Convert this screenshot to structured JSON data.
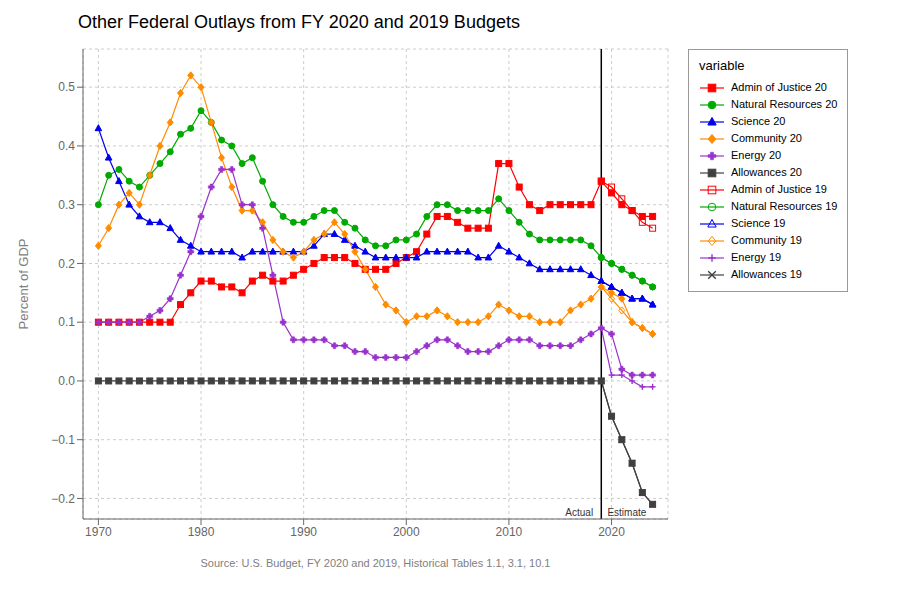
{
  "chart_data": {
    "type": "line",
    "title": "Other Federal Outlays from FY 2020 and 2019 Budgets",
    "xlabel": "Source: U.S. Budget, FY 2020 and 2019, Historical Tables 1.1, 3.1, 10.1",
    "ylabel": "Percent of GDP",
    "legend_title": "variable",
    "legend": "right",
    "grid": true,
    "xlim": [
      1968.5,
      2025.5
    ],
    "ylim": [
      -0.235,
      0.565
    ],
    "xticks": [
      1970,
      1980,
      1990,
      2000,
      2010,
      2020
    ],
    "yticks": [
      {
        "value": -0.2,
        "label": "−0.2"
      },
      {
        "value": -0.1,
        "label": "−0.1"
      },
      {
        "value": 0.0,
        "label": "0.0"
      },
      0.1,
      0.2,
      0.3,
      0.4,
      0.5
    ],
    "reference_lines": [
      {
        "axis": "x",
        "value": 2019,
        "color": "#000000"
      }
    ],
    "annotations": [
      {
        "text": "Actual",
        "x": 2018.4,
        "y": -0.215,
        "align": "right"
      },
      {
        "text": "Estimate",
        "x": 2019.4,
        "y": -0.215,
        "align": "left"
      }
    ],
    "x": [
      1970,
      1971,
      1972,
      1973,
      1974,
      1975,
      1976,
      1977,
      1978,
      1979,
      1980,
      1981,
      1982,
      1983,
      1984,
      1985,
      1986,
      1987,
      1988,
      1989,
      1990,
      1991,
      1992,
      1993,
      1994,
      1995,
      1996,
      1997,
      1998,
      1999,
      2000,
      2001,
      2002,
      2003,
      2004,
      2005,
      2006,
      2007,
      2008,
      2009,
      2010,
      2011,
      2012,
      2013,
      2014,
      2015,
      2016,
      2017,
      2018,
      2019,
      2020,
      2021,
      2022,
      2023,
      2024
    ],
    "series": [
      {
        "name": "Admin of Justice 20",
        "color": "#FF0000",
        "marker": "square",
        "values": [
          0.1,
          0.1,
          0.1,
          0.1,
          0.1,
          0.1,
          0.1,
          0.1,
          0.13,
          0.15,
          0.17,
          0.17,
          0.16,
          0.16,
          0.15,
          0.17,
          0.18,
          0.17,
          0.17,
          0.18,
          0.19,
          0.2,
          0.21,
          0.21,
          0.21,
          0.2,
          0.19,
          0.19,
          0.19,
          0.2,
          0.21,
          0.22,
          0.25,
          0.28,
          0.28,
          0.27,
          0.26,
          0.26,
          0.26,
          0.37,
          0.37,
          0.33,
          0.3,
          0.29,
          0.3,
          0.3,
          0.3,
          0.3,
          0.3,
          0.34,
          0.32,
          0.3,
          0.29,
          0.28,
          0.28
        ]
      },
      {
        "name": "Natural Resources 20",
        "color": "#00AA00",
        "marker": "circle",
        "values": [
          0.3,
          0.35,
          0.36,
          0.34,
          0.33,
          0.35,
          0.37,
          0.39,
          0.42,
          0.43,
          0.46,
          0.44,
          0.41,
          0.4,
          0.37,
          0.38,
          0.34,
          0.3,
          0.28,
          0.27,
          0.27,
          0.28,
          0.29,
          0.29,
          0.27,
          0.26,
          0.24,
          0.23,
          0.23,
          0.24,
          0.24,
          0.25,
          0.28,
          0.3,
          0.3,
          0.29,
          0.29,
          0.29,
          0.29,
          0.31,
          0.29,
          0.27,
          0.25,
          0.24,
          0.24,
          0.24,
          0.24,
          0.24,
          0.23,
          0.21,
          0.2,
          0.19,
          0.18,
          0.17,
          0.16
        ]
      },
      {
        "name": "Science 20",
        "color": "#0000EE",
        "marker": "triangle",
        "values": [
          0.43,
          0.38,
          0.34,
          0.3,
          0.28,
          0.27,
          0.27,
          0.26,
          0.24,
          0.23,
          0.22,
          0.22,
          0.22,
          0.22,
          0.21,
          0.22,
          0.22,
          0.22,
          0.22,
          0.22,
          0.22,
          0.23,
          0.25,
          0.25,
          0.24,
          0.23,
          0.22,
          0.21,
          0.21,
          0.21,
          0.21,
          0.21,
          0.22,
          0.22,
          0.22,
          0.22,
          0.22,
          0.21,
          0.21,
          0.23,
          0.22,
          0.21,
          0.2,
          0.19,
          0.19,
          0.19,
          0.19,
          0.19,
          0.18,
          0.17,
          0.16,
          0.15,
          0.14,
          0.14,
          0.13
        ]
      },
      {
        "name": "Community 20",
        "color": "#FF8C00",
        "marker": "diamond",
        "values": [
          0.23,
          0.26,
          0.3,
          0.32,
          0.3,
          0.35,
          0.4,
          0.44,
          0.49,
          0.52,
          0.5,
          0.44,
          0.38,
          0.33,
          0.29,
          0.29,
          0.27,
          0.24,
          0.22,
          0.21,
          0.22,
          0.24,
          0.25,
          0.27,
          0.25,
          0.22,
          0.19,
          0.16,
          0.13,
          0.12,
          0.1,
          0.11,
          0.11,
          0.12,
          0.11,
          0.1,
          0.1,
          0.1,
          0.11,
          0.13,
          0.12,
          0.11,
          0.11,
          0.1,
          0.1,
          0.1,
          0.12,
          0.13,
          0.14,
          0.16,
          0.15,
          0.14,
          0.1,
          0.09,
          0.08
        ]
      },
      {
        "name": "Energy 20",
        "color": "#9932CC",
        "marker": "thick_plus",
        "values": [
          0.1,
          0.1,
          0.1,
          0.1,
          0.1,
          0.11,
          0.12,
          0.14,
          0.18,
          0.22,
          0.28,
          0.33,
          0.36,
          0.36,
          0.3,
          0.3,
          0.26,
          0.18,
          0.1,
          0.07,
          0.07,
          0.07,
          0.07,
          0.06,
          0.06,
          0.05,
          0.05,
          0.04,
          0.04,
          0.04,
          0.04,
          0.05,
          0.06,
          0.07,
          0.07,
          0.06,
          0.05,
          0.05,
          0.05,
          0.06,
          0.07,
          0.07,
          0.07,
          0.06,
          0.06,
          0.06,
          0.06,
          0.07,
          0.08,
          0.09,
          0.08,
          0.02,
          0.01,
          0.01,
          0.01
        ]
      },
      {
        "name": "Allowances 20",
        "color": "#404040",
        "marker": "square",
        "values": [
          0.0,
          0.0,
          0.0,
          0.0,
          0.0,
          0.0,
          0.0,
          0.0,
          0.0,
          0.0,
          0.0,
          0.0,
          0.0,
          0.0,
          0.0,
          0.0,
          0.0,
          0.0,
          0.0,
          0.0,
          0.0,
          0.0,
          0.0,
          0.0,
          0.0,
          0.0,
          0.0,
          0.0,
          0.0,
          0.0,
          0.0,
          0.0,
          0.0,
          0.0,
          0.0,
          0.0,
          0.0,
          0.0,
          0.0,
          0.0,
          0.0,
          0.0,
          0.0,
          0.0,
          0.0,
          0.0,
          0.0,
          0.0,
          0.0,
          0.0,
          -0.06,
          -0.1,
          -0.14,
          -0.19,
          -0.21
        ]
      },
      {
        "name": "Admin of Justice 19",
        "color": "#FF0000",
        "marker": "open_square",
        "values": [
          null,
          null,
          null,
          null,
          null,
          null,
          null,
          null,
          null,
          null,
          null,
          null,
          null,
          null,
          null,
          null,
          null,
          null,
          null,
          null,
          null,
          null,
          null,
          null,
          null,
          null,
          null,
          null,
          null,
          null,
          null,
          null,
          null,
          null,
          null,
          null,
          null,
          null,
          null,
          null,
          null,
          null,
          null,
          null,
          null,
          null,
          null,
          null,
          null,
          0.34,
          0.33,
          0.31,
          0.29,
          0.27,
          0.26
        ]
      },
      {
        "name": "Natural Resources 19",
        "color": "#00AA00",
        "marker": "open_circle",
        "values": [
          null,
          null,
          null,
          null,
          null,
          null,
          null,
          null,
          null,
          null,
          null,
          null,
          null,
          null,
          null,
          null,
          null,
          null,
          null,
          null,
          null,
          null,
          null,
          null,
          null,
          null,
          null,
          null,
          null,
          null,
          null,
          null,
          null,
          null,
          null,
          null,
          null,
          null,
          null,
          null,
          null,
          null,
          null,
          null,
          null,
          null,
          null,
          null,
          null,
          0.21,
          0.2,
          0.19,
          0.18,
          0.17,
          0.16
        ]
      },
      {
        "name": "Science 19",
        "color": "#0000EE",
        "marker": "open_triangle",
        "values": [
          null,
          null,
          null,
          null,
          null,
          null,
          null,
          null,
          null,
          null,
          null,
          null,
          null,
          null,
          null,
          null,
          null,
          null,
          null,
          null,
          null,
          null,
          null,
          null,
          null,
          null,
          null,
          null,
          null,
          null,
          null,
          null,
          null,
          null,
          null,
          null,
          null,
          null,
          null,
          null,
          null,
          null,
          null,
          null,
          null,
          null,
          null,
          null,
          null,
          0.17,
          0.16,
          0.15,
          0.14,
          0.14,
          0.13
        ]
      },
      {
        "name": "Community 19",
        "color": "#FF8C00",
        "marker": "open_diamond",
        "values": [
          null,
          null,
          null,
          null,
          null,
          null,
          null,
          null,
          null,
          null,
          null,
          null,
          null,
          null,
          null,
          null,
          null,
          null,
          null,
          null,
          null,
          null,
          null,
          null,
          null,
          null,
          null,
          null,
          null,
          null,
          null,
          null,
          null,
          null,
          null,
          null,
          null,
          null,
          null,
          null,
          null,
          null,
          null,
          null,
          null,
          null,
          null,
          null,
          null,
          0.16,
          0.14,
          0.12,
          0.1,
          0.09,
          0.08
        ]
      },
      {
        "name": "Energy 19",
        "color": "#9932CC",
        "marker": "plus",
        "values": [
          null,
          null,
          null,
          null,
          null,
          null,
          null,
          null,
          null,
          null,
          null,
          null,
          null,
          null,
          null,
          null,
          null,
          null,
          null,
          null,
          null,
          null,
          null,
          null,
          null,
          null,
          null,
          null,
          null,
          null,
          null,
          null,
          null,
          null,
          null,
          null,
          null,
          null,
          null,
          null,
          null,
          null,
          null,
          null,
          null,
          null,
          null,
          null,
          null,
          0.09,
          0.01,
          0.01,
          0.0,
          -0.01,
          -0.01
        ]
      },
      {
        "name": "Allowances 19",
        "color": "#404040",
        "marker": "x",
        "values": [
          null,
          null,
          null,
          null,
          null,
          null,
          null,
          null,
          null,
          null,
          null,
          null,
          null,
          null,
          null,
          null,
          null,
          null,
          null,
          null,
          null,
          null,
          null,
          null,
          null,
          null,
          null,
          null,
          null,
          null,
          null,
          null,
          null,
          null,
          null,
          null,
          null,
          null,
          null,
          null,
          null,
          null,
          null,
          null,
          null,
          null,
          null,
          null,
          null,
          0.0,
          -0.06,
          -0.1,
          -0.14,
          -0.19,
          -0.21
        ]
      }
    ]
  }
}
